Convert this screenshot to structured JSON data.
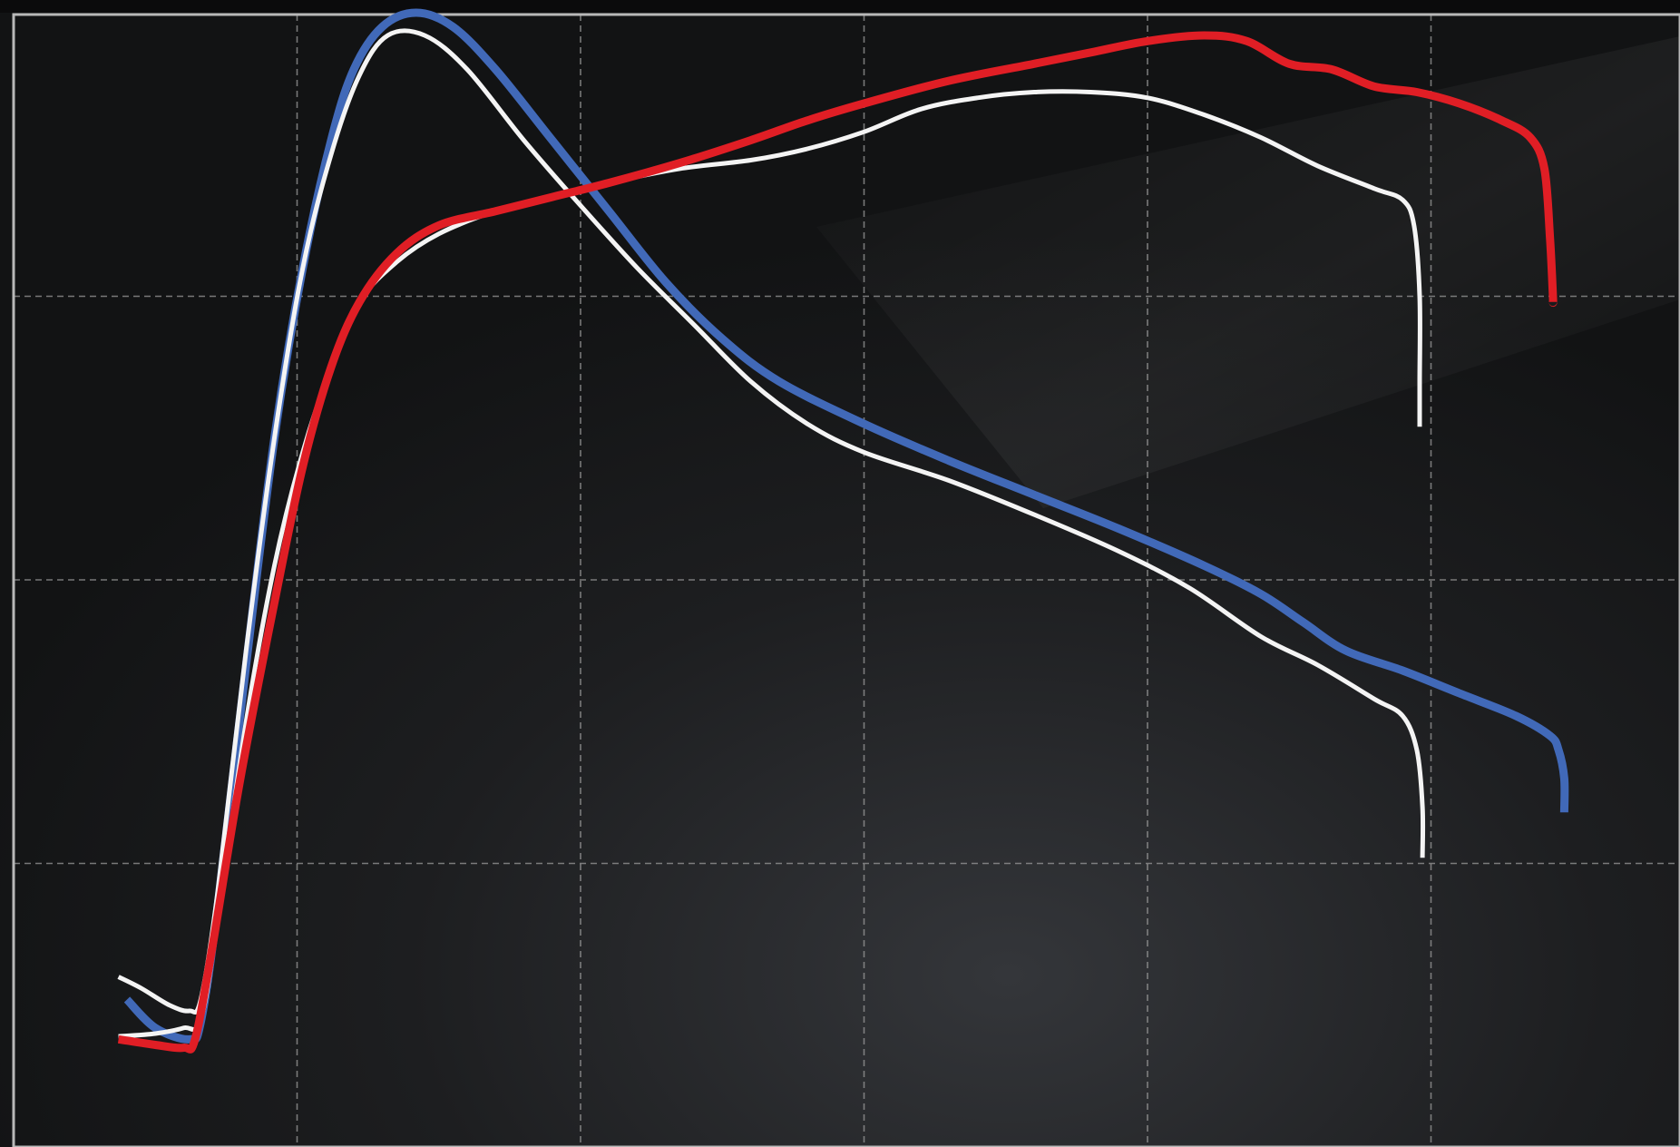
{
  "theme": {
    "background": "#151617",
    "top_strip": "#0b0b0c",
    "frame": "#b8b8b8",
    "grid": "#9a9a9a",
    "series_colors": {
      "blue": "#4169b8",
      "red": "#e01e25",
      "white": "#f4f4f4"
    }
  },
  "chart_data": {
    "type": "line",
    "title": "",
    "xlabel": "",
    "ylabel": "",
    "xlim": [
      0,
      6
    ],
    "ylim": [
      0,
      4
    ],
    "grid": true,
    "grid_x": [
      1,
      2,
      3,
      4,
      5
    ],
    "grid_y": [
      1,
      2,
      3
    ],
    "series": [
      {
        "color": "blue",
        "stroke": "thick",
        "points": [
          [
            0.4,
            0.52
          ],
          [
            0.5,
            0.42
          ],
          [
            0.62,
            0.38
          ],
          [
            0.66,
            0.44
          ],
          [
            0.72,
            0.85
          ],
          [
            0.82,
            1.7
          ],
          [
            0.92,
            2.5
          ],
          [
            1.02,
            3.1
          ],
          [
            1.12,
            3.55
          ],
          [
            1.2,
            3.8
          ],
          [
            1.3,
            3.95
          ],
          [
            1.42,
            4.0
          ],
          [
            1.55,
            3.95
          ],
          [
            1.7,
            3.8
          ],
          [
            1.9,
            3.55
          ],
          [
            2.1,
            3.3
          ],
          [
            2.3,
            3.05
          ],
          [
            2.5,
            2.85
          ],
          [
            2.7,
            2.7
          ],
          [
            3.0,
            2.55
          ],
          [
            3.3,
            2.42
          ],
          [
            3.6,
            2.3
          ],
          [
            3.9,
            2.18
          ],
          [
            4.2,
            2.05
          ],
          [
            4.4,
            1.95
          ],
          [
            4.55,
            1.85
          ],
          [
            4.7,
            1.75
          ],
          [
            4.9,
            1.68
          ],
          [
            5.1,
            1.6
          ],
          [
            5.3,
            1.52
          ],
          [
            5.42,
            1.45
          ],
          [
            5.45,
            1.4
          ],
          [
            5.47,
            1.3
          ],
          [
            5.47,
            1.18
          ]
        ]
      },
      {
        "color": "white",
        "stroke": "thin",
        "points": [
          [
            0.37,
            0.6
          ],
          [
            0.45,
            0.56
          ],
          [
            0.55,
            0.5
          ],
          [
            0.62,
            0.48
          ],
          [
            0.66,
            0.52
          ],
          [
            0.72,
            0.9
          ],
          [
            0.82,
            1.75
          ],
          [
            0.92,
            2.5
          ],
          [
            1.02,
            3.1
          ],
          [
            1.12,
            3.5
          ],
          [
            1.22,
            3.78
          ],
          [
            1.32,
            3.92
          ],
          [
            1.45,
            3.92
          ],
          [
            1.6,
            3.8
          ],
          [
            1.8,
            3.55
          ],
          [
            2.0,
            3.32
          ],
          [
            2.2,
            3.1
          ],
          [
            2.4,
            2.9
          ],
          [
            2.6,
            2.7
          ],
          [
            2.8,
            2.55
          ],
          [
            3.0,
            2.45
          ],
          [
            3.3,
            2.35
          ],
          [
            3.6,
            2.23
          ],
          [
            3.9,
            2.1
          ],
          [
            4.15,
            1.97
          ],
          [
            4.4,
            1.8
          ],
          [
            4.6,
            1.7
          ],
          [
            4.8,
            1.58
          ],
          [
            4.9,
            1.52
          ],
          [
            4.95,
            1.4
          ],
          [
            4.97,
            1.2
          ],
          [
            4.97,
            1.02
          ]
        ]
      },
      {
        "color": "white",
        "stroke": "thin",
        "points": [
          [
            0.37,
            0.39
          ],
          [
            0.5,
            0.4
          ],
          [
            0.6,
            0.42
          ],
          [
            0.66,
            0.45
          ],
          [
            0.72,
            0.8
          ],
          [
            0.82,
            1.5
          ],
          [
            0.92,
            2.05
          ],
          [
            1.02,
            2.45
          ],
          [
            1.12,
            2.75
          ],
          [
            1.22,
            2.98
          ],
          [
            1.35,
            3.12
          ],
          [
            1.5,
            3.22
          ],
          [
            1.7,
            3.3
          ],
          [
            1.9,
            3.35
          ],
          [
            2.1,
            3.4
          ],
          [
            2.35,
            3.45
          ],
          [
            2.6,
            3.48
          ],
          [
            2.8,
            3.52
          ],
          [
            3.0,
            3.58
          ],
          [
            3.2,
            3.66
          ],
          [
            3.4,
            3.7
          ],
          [
            3.6,
            3.72
          ],
          [
            3.8,
            3.72
          ],
          [
            4.0,
            3.7
          ],
          [
            4.2,
            3.64
          ],
          [
            4.4,
            3.56
          ],
          [
            4.6,
            3.46
          ],
          [
            4.8,
            3.38
          ],
          [
            4.9,
            3.34
          ],
          [
            4.94,
            3.25
          ],
          [
            4.96,
            3.0
          ],
          [
            4.96,
            2.7
          ],
          [
            4.96,
            2.54
          ]
        ]
      },
      {
        "color": "red",
        "stroke": "thick",
        "points": [
          [
            0.37,
            0.38
          ],
          [
            0.5,
            0.36
          ],
          [
            0.6,
            0.35
          ],
          [
            0.64,
            0.38
          ],
          [
            0.7,
            0.7
          ],
          [
            0.8,
            1.3
          ],
          [
            0.92,
            1.92
          ],
          [
            1.02,
            2.4
          ],
          [
            1.12,
            2.75
          ],
          [
            1.22,
            2.98
          ],
          [
            1.35,
            3.15
          ],
          [
            1.5,
            3.25
          ],
          [
            1.7,
            3.3
          ],
          [
            1.9,
            3.35
          ],
          [
            2.1,
            3.4
          ],
          [
            2.35,
            3.47
          ],
          [
            2.6,
            3.55
          ],
          [
            2.8,
            3.62
          ],
          [
            3.0,
            3.68
          ],
          [
            3.3,
            3.76
          ],
          [
            3.6,
            3.82
          ],
          [
            3.8,
            3.86
          ],
          [
            4.0,
            3.9
          ],
          [
            4.2,
            3.92
          ],
          [
            4.35,
            3.9
          ],
          [
            4.5,
            3.82
          ],
          [
            4.65,
            3.8
          ],
          [
            4.8,
            3.74
          ],
          [
            4.95,
            3.72
          ],
          [
            5.1,
            3.68
          ],
          [
            5.25,
            3.62
          ],
          [
            5.35,
            3.56
          ],
          [
            5.4,
            3.45
          ],
          [
            5.42,
            3.2
          ],
          [
            5.43,
            3.0
          ],
          [
            5.43,
            2.98
          ]
        ]
      }
    ]
  }
}
